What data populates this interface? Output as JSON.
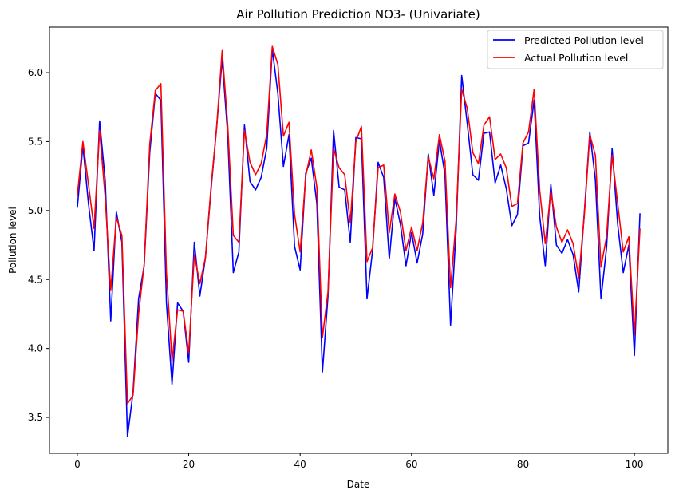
{
  "chart_data": {
    "type": "line",
    "title": "Air Pollution Prediction NO3- (Univariate)",
    "xlabel": "Date",
    "ylabel": "Pollution level",
    "xlim": [
      -5,
      106
    ],
    "ylim": [
      3.24,
      6.33
    ],
    "xticks": [
      0,
      20,
      40,
      60,
      80,
      100
    ],
    "yticks": [
      3.5,
      4.0,
      4.5,
      5.0,
      5.5,
      6.0
    ],
    "xtick_labels": [
      "0",
      "20",
      "40",
      "60",
      "80",
      "100"
    ],
    "ytick_labels": [
      "3.5",
      "4.0",
      "4.5",
      "5.0",
      "5.5",
      "6.0"
    ],
    "grid": false,
    "legend_position": "upper-right",
    "x": [
      0,
      1,
      2,
      3,
      4,
      5,
      6,
      7,
      8,
      9,
      10,
      11,
      12,
      13,
      14,
      15,
      16,
      17,
      18,
      19,
      20,
      21,
      22,
      23,
      24,
      25,
      26,
      27,
      28,
      29,
      30,
      31,
      32,
      33,
      34,
      35,
      36,
      37,
      38,
      39,
      40,
      41,
      42,
      43,
      44,
      45,
      46,
      47,
      48,
      49,
      50,
      51,
      52,
      53,
      54,
      55,
      56,
      57,
      58,
      59,
      60,
      61,
      62,
      63,
      64,
      65,
      66,
      67,
      68,
      69,
      70,
      71,
      72,
      73,
      74,
      75,
      76,
      77,
      78,
      79,
      80,
      81,
      82,
      83,
      84,
      85,
      86,
      87,
      88,
      89,
      90,
      91,
      92,
      93,
      94,
      95,
      96,
      97,
      98,
      99,
      100,
      101
    ],
    "series": [
      {
        "name": "Predicted Pollution level",
        "color": "#0000ff",
        "values": [
          5.02,
          5.47,
          5.05,
          4.71,
          5.65,
          5.22,
          4.2,
          4.99,
          4.77,
          3.36,
          3.68,
          4.36,
          4.6,
          5.42,
          5.85,
          5.8,
          4.33,
          3.74,
          4.33,
          4.27,
          3.9,
          4.77,
          4.38,
          4.66,
          5.15,
          5.6,
          6.1,
          5.55,
          4.55,
          4.7,
          5.62,
          5.21,
          5.15,
          5.24,
          5.45,
          6.17,
          5.85,
          5.32,
          5.55,
          4.74,
          4.57,
          5.27,
          5.38,
          5.05,
          3.83,
          4.38,
          5.58,
          5.17,
          5.15,
          4.77,
          5.53,
          5.52,
          4.36,
          4.71,
          5.35,
          5.24,
          4.65,
          5.09,
          4.9,
          4.6,
          4.84,
          4.62,
          4.83,
          5.41,
          5.11,
          5.51,
          5.26,
          4.17,
          4.86,
          5.98,
          5.63,
          5.26,
          5.22,
          5.56,
          5.57,
          5.2,
          5.33,
          5.16,
          4.89,
          4.97,
          5.47,
          5.49,
          5.8,
          4.96,
          4.6,
          5.19,
          4.75,
          4.69,
          4.79,
          4.68,
          4.41,
          4.98,
          5.57,
          5.22,
          4.36,
          4.73,
          5.45,
          4.9,
          4.55,
          4.75,
          3.95,
          4.98
        ]
      },
      {
        "name": "Actual Pollution level",
        "color": "#ff0000",
        "values": [
          5.11,
          5.5,
          5.19,
          4.87,
          5.58,
          5.1,
          4.42,
          4.95,
          4.82,
          3.6,
          3.66,
          4.25,
          4.61,
          5.48,
          5.87,
          5.92,
          4.55,
          3.91,
          4.28,
          4.27,
          3.97,
          4.68,
          4.47,
          4.66,
          5.17,
          5.6,
          6.16,
          5.62,
          4.82,
          4.77,
          5.58,
          5.35,
          5.26,
          5.34,
          5.55,
          6.19,
          6.06,
          5.54,
          5.64,
          4.97,
          4.7,
          5.25,
          5.44,
          5.17,
          4.08,
          4.41,
          5.45,
          5.31,
          5.26,
          4.91,
          5.5,
          5.61,
          4.63,
          4.73,
          5.31,
          5.33,
          4.84,
          5.12,
          4.99,
          4.71,
          4.88,
          4.71,
          4.91,
          5.39,
          5.23,
          5.55,
          5.36,
          4.44,
          4.93,
          5.88,
          5.74,
          5.42,
          5.34,
          5.62,
          5.68,
          5.37,
          5.41,
          5.31,
          5.03,
          5.05,
          5.49,
          5.57,
          5.88,
          5.15,
          4.76,
          5.14,
          4.88,
          4.77,
          4.86,
          4.76,
          4.51,
          4.96,
          5.55,
          5.4,
          4.59,
          4.81,
          5.4,
          5.05,
          4.7,
          4.81,
          4.1,
          4.87
        ]
      }
    ]
  }
}
